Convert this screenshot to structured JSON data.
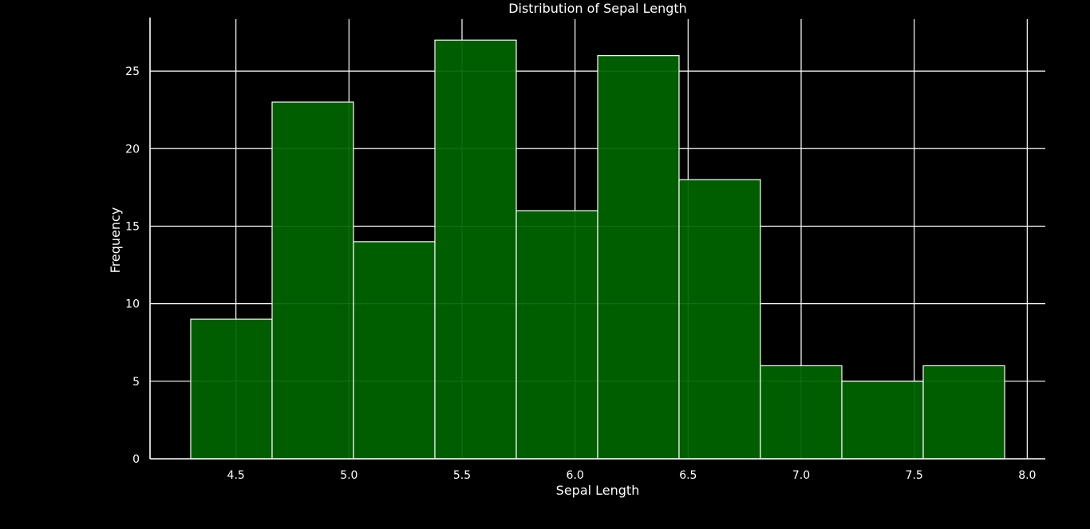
{
  "chart_data": {
    "type": "bar",
    "title": "Distribution of Sepal Length",
    "xlabel": "Sepal Length",
    "ylabel": "Frequency",
    "xlim": [
      4.12,
      8.08
    ],
    "ylim": [
      0,
      28.35
    ],
    "xticks": [
      "4.5",
      "5.0",
      "5.5",
      "6.0",
      "6.5",
      "7.0",
      "7.5",
      "8.0"
    ],
    "yticks": [
      "0",
      "5",
      "10",
      "15",
      "20",
      "25"
    ],
    "grid": true,
    "bin_edges": [
      4.3,
      4.66,
      5.02,
      5.38,
      5.74,
      6.1,
      6.46,
      6.82,
      7.18,
      7.54,
      7.9
    ],
    "values": [
      9,
      23,
      14,
      27,
      16,
      26,
      18,
      6,
      5,
      6
    ],
    "colors": {
      "background": "#000000",
      "bar_fill": "#006400",
      "bar_edge": "#ffffff",
      "grid": "#ffffff",
      "text": "#ffffff"
    }
  }
}
